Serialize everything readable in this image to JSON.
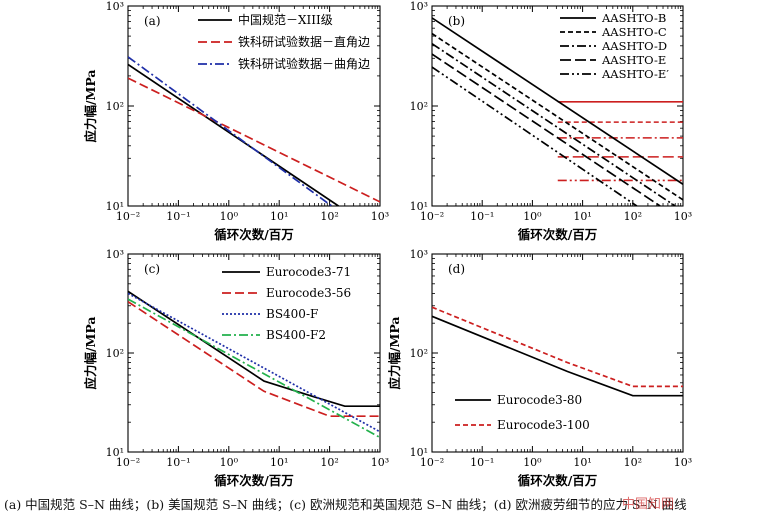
{
  "caption": "(a) 中国规范 S–N 曲线；(b) 美国规范 S–N 曲线；(c) 欧洲规范和英国规范 S–N 曲线；(d) 欧洲疲劳细节的应力 S–N 曲线",
  "watermark": "中国知网",
  "chart_data": [
    {
      "panel": "(a)",
      "type": "line",
      "xlabel": "循环次数/百万",
      "ylabel": "应力幅/MPa",
      "xscale": "log",
      "yscale": "log",
      "xlim": [
        0.01,
        1000
      ],
      "ylim": [
        10,
        1000
      ],
      "xticks": [
        "10⁻²",
        "10⁻¹",
        "10⁰",
        "10¹",
        "10²",
        "10³"
      ],
      "yticks": [
        "10¹",
        "10²",
        "10³"
      ],
      "legend": "top-right",
      "series": [
        {
          "name": "中国规范－XIII级",
          "color": "#000000",
          "dash": "solid",
          "x": [
            0.01,
            150
          ],
          "y": [
            260,
            10
          ]
        },
        {
          "name": "铁科研试验数据－直角边",
          "color": "#cc1f1f",
          "dash": "dashed",
          "x": [
            0.01,
            1000
          ],
          "y": [
            190,
            11
          ]
        },
        {
          "name": "铁科研试验数据－曲角边",
          "color": "#1f2fa8",
          "dash": "dashdot",
          "x": [
            0.01,
            110
          ],
          "y": [
            310,
            10
          ]
        }
      ]
    },
    {
      "panel": "(b)",
      "type": "line",
      "xlabel": "循环次数/百万",
      "ylabel": "",
      "xscale": "log",
      "yscale": "log",
      "xlim": [
        0.01,
        1000
      ],
      "ylim": [
        10,
        1000
      ],
      "xticks": [
        "10⁻²",
        "10⁻¹",
        "10⁰",
        "10¹",
        "10²",
        "10³"
      ],
      "yticks": [
        "10¹",
        "10²",
        "10³"
      ],
      "legend": "top-right",
      "series": [
        {
          "name": "AASHTO-B",
          "color": "#000000",
          "dash": "solid",
          "x": [
            0.01,
            1000
          ],
          "y": [
            760,
            16.5
          ]
        },
        {
          "name": "AASHTO-C",
          "color": "#000000",
          "dash": "shortdash",
          "x": [
            0.01,
            1000
          ],
          "y": [
            530,
            11.5
          ]
        },
        {
          "name": "AASHTO-D",
          "color": "#000000",
          "dash": "dashdot",
          "x": [
            0.01,
            700
          ],
          "y": [
            420,
            10
          ]
        },
        {
          "name": "AASHTO-E",
          "color": "#000000",
          "dash": "longdash",
          "x": [
            0.01,
            350
          ],
          "y": [
            330,
            10
          ]
        },
        {
          "name": "AASHTO-E′",
          "color": "#000000",
          "dash": "dashdotdot",
          "x": [
            0.01,
            120
          ],
          "y": [
            245,
            10
          ]
        }
      ],
      "thresholds": [
        {
          "color": "#cc1f1f",
          "dash": "solid",
          "x": [
            3.2,
            1000
          ],
          "y": 110
        },
        {
          "color": "#cc1f1f",
          "dash": "shortdash",
          "x": [
            3.2,
            1000
          ],
          "y": 69
        },
        {
          "color": "#cc1f1f",
          "dash": "dashdot",
          "x": [
            3.2,
            1000
          ],
          "y": 48
        },
        {
          "color": "#cc1f1f",
          "dash": "longdash",
          "x": [
            3.2,
            1000
          ],
          "y": 31
        },
        {
          "color": "#cc1f1f",
          "dash": "dashdotdot",
          "x": [
            3.2,
            1000
          ],
          "y": 18
        }
      ]
    },
    {
      "panel": "(c)",
      "type": "line",
      "xlabel": "循环次数/百万",
      "ylabel": "应力幅/MPa",
      "xscale": "log",
      "yscale": "log",
      "xlim": [
        0.01,
        1000
      ],
      "ylim": [
        10,
        1000
      ],
      "xticks": [
        "10⁻²",
        "10⁻¹",
        "10⁰",
        "10¹",
        "10²",
        "10³"
      ],
      "yticks": [
        "10¹",
        "10²",
        "10³"
      ],
      "legend": "top-right",
      "series": [
        {
          "name": "Eurocode3-71",
          "color": "#000000",
          "dash": "solid",
          "x": [
            0.01,
            5,
            50,
            200,
            1000
          ],
          "y": [
            420,
            52,
            36,
            29,
            29
          ]
        },
        {
          "name": "Eurocode3-56",
          "color": "#cc1f1f",
          "dash": "dashed",
          "x": [
            0.01,
            5,
            100,
            1000
          ],
          "y": [
            330,
            41,
            23,
            23
          ]
        },
        {
          "name": "BS400-F",
          "color": "#1f2fa8",
          "dash": "dotted",
          "x": [
            0.01,
            1000
          ],
          "y": [
            400,
            16
          ]
        },
        {
          "name": "BS400-F2",
          "color": "#22b14c",
          "dash": "dashdot",
          "x": [
            0.01,
            1000
          ],
          "y": [
            350,
            14
          ]
        }
      ]
    },
    {
      "panel": "(d)",
      "type": "line",
      "xlabel": "循环次数/百万",
      "ylabel": "应力幅/MPa",
      "xscale": "log",
      "yscale": "log",
      "xlim": [
        0.01,
        1000
      ],
      "ylim": [
        10,
        1000
      ],
      "xticks": [
        "10⁻²",
        "10⁻¹",
        "10⁰",
        "10¹",
        "10²",
        "10³"
      ],
      "yticks": [
        "10¹",
        "10²",
        "10³"
      ],
      "legend": "bottom-left",
      "series": [
        {
          "name": "Eurocode3-80",
          "color": "#000000",
          "dash": "solid",
          "x": [
            0.01,
            5,
            100,
            1000
          ],
          "y": [
            235,
            65,
            37,
            37
          ]
        },
        {
          "name": "Eurocode3-100",
          "color": "#cc1f1f",
          "dash": "shortdash",
          "x": [
            0.01,
            5,
            100,
            1000
          ],
          "y": [
            290,
            80,
            46,
            46
          ]
        }
      ]
    }
  ]
}
